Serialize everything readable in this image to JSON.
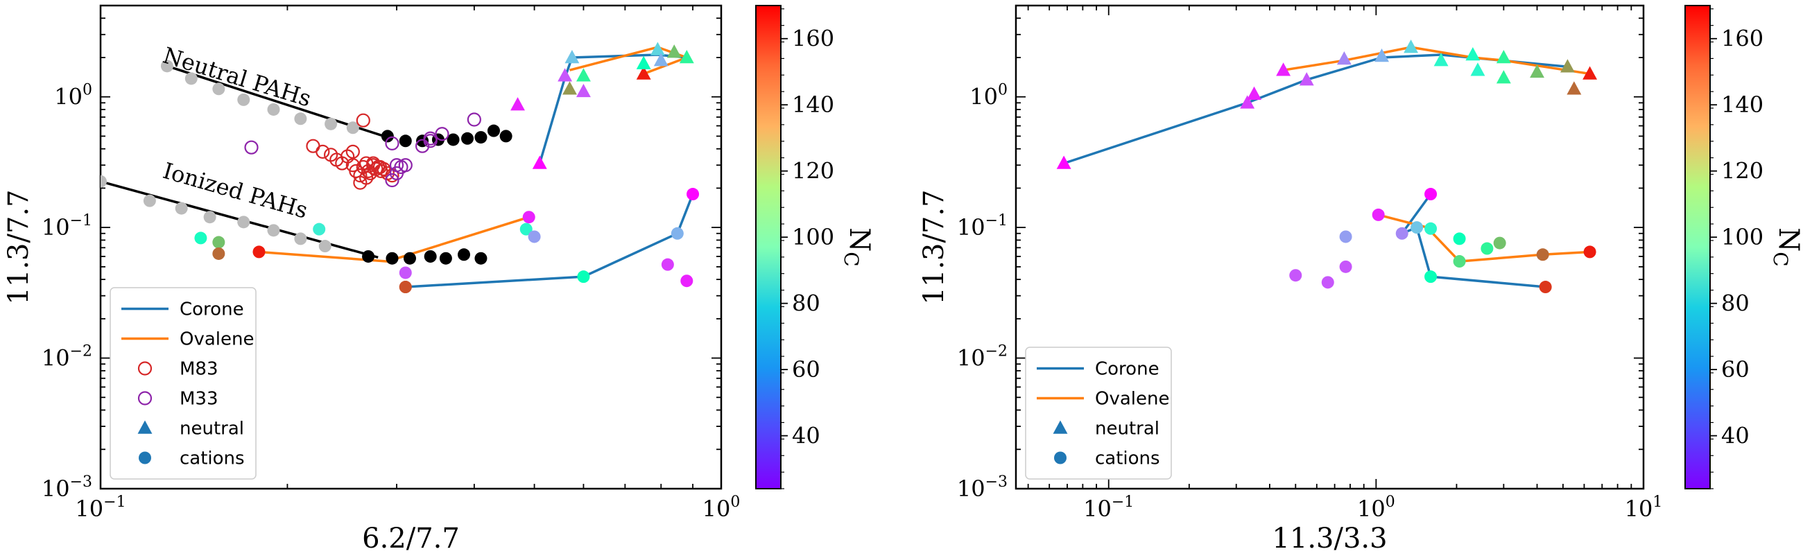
{
  "chart_data": [
    {
      "type": "scatter",
      "panel": "left",
      "xlabel": "6.2/7.7",
      "ylabel": "11.3/7.7",
      "xscale": "log",
      "yscale": "log",
      "xlim": [
        0.1,
        1.0
      ],
      "ylim": [
        0.001,
        5.0
      ],
      "x_ticks": [
        {
          "value": 0.1,
          "base": "10",
          "exp": "−1"
        },
        {
          "value": 1.0,
          "base": "10",
          "exp": "0"
        }
      ],
      "y_ticks": [
        {
          "value": 0.001,
          "base": "10",
          "exp": "−3"
        },
        {
          "value": 0.01,
          "base": "10",
          "exp": "−2"
        },
        {
          "value": 0.1,
          "base": "10",
          "exp": "−1"
        },
        {
          "value": 1.0,
          "base": "10",
          "exp": "0"
        }
      ],
      "annotations": [
        {
          "text": "Neutral PAHs",
          "x": 0.128,
          "y": 1.72,
          "angle_deg": 17
        },
        {
          "text": "Ionized PAHs",
          "x": 0.128,
          "y": 0.225,
          "angle_deg": 16
        }
      ],
      "legend": {
        "position": "lower-left",
        "entries": [
          {
            "label": "Corone",
            "marker": "line",
            "color": "#1f77b4"
          },
          {
            "label": "Ovalene",
            "marker": "line",
            "color": "#ff7f0e"
          },
          {
            "label": "M83",
            "marker": "open-circle",
            "color": "#d62728"
          },
          {
            "label": "M33",
            "marker": "open-circle",
            "color": "#8e24aa"
          },
          {
            "label": "neutral",
            "marker": "triangle",
            "color": "#1f77b4"
          },
          {
            "label": "cations",
            "marker": "circle",
            "color": "#1f77b4"
          }
        ]
      },
      "colorbar": {
        "label_base": "N",
        "label_sub": "C",
        "vmin": 24,
        "vmax": 170,
        "ticks": [
          40,
          60,
          80,
          100,
          120,
          140,
          160
        ],
        "colormap": "rainbow"
      },
      "lines": [
        {
          "color": "#000000",
          "x": [
            0.128,
            0.29
          ],
          "y": [
            1.72,
            0.49
          ]
        },
        {
          "color": "#000000",
          "x": [
            0.1,
            0.28
          ],
          "y": [
            0.225,
            0.059
          ]
        },
        {
          "color": "#1f77b4",
          "x": [
            0.51,
            0.56,
            0.575,
            0.79,
            0.88
          ],
          "y": [
            0.31,
            1.4,
            2.0,
            2.1,
            2.0
          ]
        },
        {
          "color": "#ff7f0e",
          "x": [
            0.57,
            0.79,
            0.88,
            0.75
          ],
          "y": [
            1.6,
            2.4,
            2.0,
            1.5
          ]
        },
        {
          "color": "#1f77b4",
          "x": [
            0.31,
            0.6,
            0.85,
            0.9
          ],
          "y": [
            0.035,
            0.042,
            0.09,
            0.18
          ]
        },
        {
          "color": "#ff7f0e",
          "x": [
            0.18,
            0.29,
            0.49
          ],
          "y": [
            0.065,
            0.055,
            0.12
          ]
        }
      ],
      "series": [
        {
          "name": "grey neutral",
          "marker": "circle",
          "color": "#bbbbbb",
          "x": [
            0.128,
            0.14,
            0.155,
            0.17,
            0.19,
            0.21,
            0.235,
            0.255
          ],
          "y": [
            1.72,
            1.38,
            1.15,
            0.95,
            0.8,
            0.68,
            0.62,
            0.58
          ]
        },
        {
          "name": "black neutral",
          "marker": "circle",
          "color": "#000000",
          "x": [
            0.29,
            0.31,
            0.33,
            0.35,
            0.37,
            0.39,
            0.41,
            0.43,
            0.45
          ],
          "y": [
            0.5,
            0.46,
            0.46,
            0.47,
            0.47,
            0.48,
            0.49,
            0.55,
            0.5
          ]
        },
        {
          "name": "grey ionized",
          "marker": "circle",
          "color": "#bbbbbb",
          "x": [
            0.1,
            0.12,
            0.135,
            0.15,
            0.17,
            0.19,
            0.21,
            0.23
          ],
          "y": [
            0.225,
            0.16,
            0.14,
            0.12,
            0.11,
            0.095,
            0.082,
            0.072
          ]
        },
        {
          "name": "black ionized",
          "marker": "circle",
          "color": "#000000",
          "x": [
            0.27,
            0.295,
            0.315,
            0.34,
            0.36,
            0.385,
            0.41
          ],
          "y": [
            0.06,
            0.058,
            0.058,
            0.06,
            0.058,
            0.062,
            0.058
          ]
        },
        {
          "name": "M83",
          "marker": "open-circle",
          "color": "#d62728",
          "x": [
            0.265,
            0.22,
            0.228,
            0.235,
            0.24,
            0.245,
            0.25,
            0.255,
            0.258,
            0.262,
            0.265,
            0.268,
            0.27,
            0.272,
            0.275,
            0.278,
            0.28,
            0.283,
            0.286,
            0.29,
            0.295,
            0.255,
            0.262,
            0.268,
            0.275,
            0.282
          ],
          "y": [
            0.66,
            0.42,
            0.38,
            0.36,
            0.33,
            0.31,
            0.35,
            0.3,
            0.27,
            0.25,
            0.29,
            0.31,
            0.27,
            0.26,
            0.3,
            0.28,
            0.29,
            0.27,
            0.28,
            0.26,
            0.25,
            0.38,
            0.22,
            0.24,
            0.31,
            0.29
          ]
        },
        {
          "name": "M33",
          "marker": "open-circle",
          "color": "#8e24aa",
          "x": [
            0.175,
            0.295,
            0.3,
            0.305,
            0.31,
            0.3,
            0.295,
            0.34,
            0.355,
            0.33,
            0.4,
            0.34
          ],
          "y": [
            0.41,
            0.44,
            0.3,
            0.29,
            0.3,
            0.26,
            0.23,
            0.46,
            0.52,
            0.42,
            0.67,
            0.48
          ]
        },
        {
          "name": "neutral",
          "marker": "triangle",
          "color_by": "N_C",
          "x": [
            0.47,
            0.51,
            0.56,
            0.575,
            0.6,
            0.57,
            0.75,
            0.79,
            0.88,
            0.84,
            0.8,
            0.75,
            0.6
          ],
          "y": [
            0.87,
            0.31,
            1.45,
            2.0,
            1.1,
            1.15,
            1.5,
            2.3,
            2.0,
            2.2,
            1.9,
            1.8,
            1.45
          ],
          "c": [
            30,
            25,
            40,
            65,
            40,
            140,
            165,
            70,
            110,
            130,
            60,
            95,
            110
          ]
        },
        {
          "name": "cations",
          "marker": "circle",
          "color_by": "N_C",
          "x": [
            0.145,
            0.155,
            0.155,
            0.18,
            0.225,
            0.31,
            0.31,
            0.485,
            0.49,
            0.5,
            0.6,
            0.82,
            0.85,
            0.88,
            0.9,
            0.31
          ],
          "y": [
            0.083,
            0.077,
            0.063,
            0.065,
            0.097,
            0.045,
            0.035,
            0.097,
            0.12,
            0.085,
            0.042,
            0.052,
            0.09,
            0.039,
            0.18,
            0.035
          ],
          "c": [
            90,
            130,
            150,
            165,
            80,
            40,
            155,
            85,
            30,
            55,
            95,
            35,
            60,
            30,
            25,
            155
          ]
        }
      ]
    },
    {
      "type": "scatter",
      "panel": "right",
      "xlabel": "11.3/3.3",
      "ylabel": "11.3/7.7",
      "xscale": "log",
      "yscale": "log",
      "xlim": [
        0.045,
        10.0
      ],
      "ylim": [
        0.001,
        5.0
      ],
      "x_ticks": [
        {
          "value": 0.1,
          "base": "10",
          "exp": "−1"
        },
        {
          "value": 1.0,
          "base": "10",
          "exp": "0"
        },
        {
          "value": 10.0,
          "base": "10",
          "exp": "1"
        }
      ],
      "y_ticks": [
        {
          "value": 0.001,
          "base": "10",
          "exp": "−3"
        },
        {
          "value": 0.01,
          "base": "10",
          "exp": "−2"
        },
        {
          "value": 0.1,
          "base": "10",
          "exp": "−1"
        },
        {
          "value": 1.0,
          "base": "10",
          "exp": "0"
        }
      ],
      "legend": {
        "position": "lower-left",
        "entries": [
          {
            "label": "Corone",
            "marker": "line",
            "color": "#1f77b4"
          },
          {
            "label": "Ovalene",
            "marker": "line",
            "color": "#ff7f0e"
          },
          {
            "label": "neutral",
            "marker": "triangle",
            "color": "#1f77b4"
          },
          {
            "label": "cations",
            "marker": "circle",
            "color": "#1f77b4"
          }
        ]
      },
      "colorbar": {
        "label_base": "N",
        "label_sub": "C",
        "vmin": 24,
        "vmax": 170,
        "ticks": [
          40,
          60,
          80,
          100,
          120,
          140,
          160
        ],
        "colormap": "rainbow"
      },
      "lines": [
        {
          "color": "#1f77b4",
          "x": [
            0.068,
            0.33,
            0.55,
            1.05,
            1.75,
            5.2
          ],
          "y": [
            0.31,
            0.9,
            1.35,
            2.0,
            2.1,
            1.7
          ]
        },
        {
          "color": "#ff7f0e",
          "x": [
            0.45,
            0.76,
            1.35,
            2.3,
            3.0,
            6.3
          ],
          "y": [
            1.6,
            1.9,
            2.4,
            2.0,
            1.9,
            1.5
          ]
        },
        {
          "color": "#1f77b4",
          "x": [
            1.6,
            1.25,
            1.42,
            1.6,
            4.3
          ],
          "y": [
            0.18,
            0.09,
            0.1,
            0.042,
            0.035
          ]
        },
        {
          "color": "#ff7f0e",
          "x": [
            1.02,
            1.55,
            2.05,
            4.2,
            6.3
          ],
          "y": [
            0.125,
            0.1,
            0.055,
            0.062,
            0.065
          ]
        }
      ],
      "series": [
        {
          "name": "neutral",
          "marker": "triangle",
          "color_by": "N_C",
          "x": [
            0.068,
            0.33,
            0.35,
            0.45,
            0.55,
            0.76,
            1.05,
            1.35,
            1.75,
            2.3,
            2.4,
            3.0,
            3.0,
            4.0,
            5.2,
            5.5,
            6.3
          ],
          "y": [
            0.31,
            0.9,
            1.05,
            1.6,
            1.35,
            1.95,
            2.05,
            2.4,
            1.9,
            2.1,
            1.6,
            2.0,
            1.4,
            1.55,
            1.7,
            1.15,
            1.5
          ],
          "c": [
            25,
            35,
            30,
            30,
            40,
            50,
            60,
            70,
            85,
            90,
            85,
            110,
            110,
            130,
            140,
            150,
            165
          ]
        },
        {
          "name": "cations",
          "marker": "circle",
          "color_by": "N_C",
          "x": [
            0.5,
            0.66,
            0.77,
            0.77,
            1.02,
            1.25,
            1.42,
            1.6,
            1.6,
            1.6,
            2.05,
            2.05,
            2.6,
            2.9,
            4.2,
            4.3,
            6.3
          ],
          "y": [
            0.043,
            0.038,
            0.05,
            0.085,
            0.125,
            0.09,
            0.1,
            0.18,
            0.098,
            0.042,
            0.055,
            0.082,
            0.069,
            0.076,
            0.062,
            0.035,
            0.065
          ],
          "c": [
            40,
            40,
            40,
            55,
            30,
            50,
            65,
            25,
            85,
            95,
            120,
            95,
            110,
            130,
            150,
            160,
            165
          ]
        }
      ]
    }
  ]
}
